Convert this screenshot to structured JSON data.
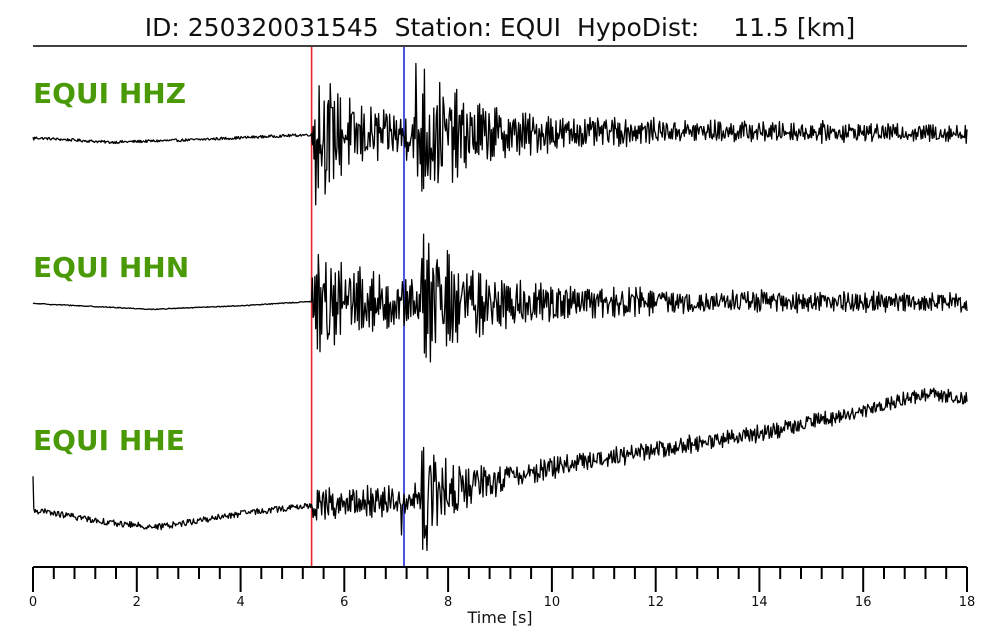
{
  "chart_data": {
    "type": "line",
    "title": {
      "id_label": "ID: 250320031545",
      "station_label": "Station: EQUI",
      "dist_label": "HypoDist:",
      "dist_value": "11.5 [km]"
    },
    "xlabel": "Time [s]",
    "xlim": [
      0,
      18
    ],
    "major_ticks": [
      0,
      2,
      4,
      6,
      8,
      10,
      12,
      14,
      16,
      18
    ],
    "minor_tick_step": 0.4,
    "label_color": "#4a9a08",
    "trace_color": "#000000",
    "picks": [
      {
        "phase": "P",
        "time": 5.37,
        "color": "#e8242a"
      },
      {
        "phase": "S",
        "time": 7.15,
        "color": "#1f2bd6"
      }
    ],
    "series": [
      {
        "name": "EQUI HHZ",
        "pre_noise": 0.03,
        "noise": [
          0.06,
          0.4,
          0.14,
          0.09
        ],
        "bursts": [
          [
            5.42,
            1.05,
            0.32
          ],
          [
            7.4,
            1.05,
            0.9
          ]
        ],
        "trend": [
          [
            0,
            0.05
          ],
          [
            1.5,
            -0.05
          ],
          [
            3,
            0.0
          ],
          [
            5.37,
            0.12
          ],
          [
            8,
            0.1
          ],
          [
            12,
            0.2
          ],
          [
            18,
            0.15
          ]
        ],
        "spikes": [
          [
            0.02,
            0.0
          ],
          [
            7.38,
            1.7
          ],
          [
            7.42,
            -0.8
          ]
        ]
      },
      {
        "name": "EQUI HHN",
        "pre_noise": 0.01,
        "noise": [
          0.05,
          0.38,
          0.15,
          0.11
        ],
        "bursts": [
          [
            5.45,
            0.62,
            0.4
          ],
          [
            7.5,
            1.05,
            0.9
          ]
        ],
        "trend": [
          [
            0,
            0.1
          ],
          [
            2.3,
            -0.03
          ],
          [
            4,
            0.05
          ],
          [
            5.3,
            0.14
          ],
          [
            9,
            0.1
          ],
          [
            14,
            0.15
          ],
          [
            18,
            0.12
          ]
        ],
        "spikes": [
          [
            7.5,
            1.1
          ],
          [
            7.55,
            -1.0
          ]
        ]
      },
      {
        "name": "EQUI HHE",
        "pre_noise": 0.07,
        "noise": [
          0.06,
          0.14,
          0.1,
          0.07
        ],
        "bursts": [
          [
            7.45,
            1.0,
            0.6
          ]
        ],
        "trend": [
          [
            0,
            0.0
          ],
          [
            1.6,
            -0.3
          ],
          [
            2.4,
            -0.38
          ],
          [
            4.2,
            -0.05
          ],
          [
            5.37,
            0.1
          ],
          [
            7.0,
            0.2
          ],
          [
            8.0,
            0.4
          ],
          [
            10,
            0.95
          ],
          [
            12,
            1.35
          ],
          [
            14,
            1.7
          ],
          [
            16,
            2.2
          ],
          [
            17.3,
            2.62
          ],
          [
            18,
            2.45
          ]
        ],
        "spikes": [
          [
            0.0,
            0.75
          ],
          [
            7.1,
            -0.55
          ],
          [
            7.6,
            -0.9
          ]
        ]
      }
    ]
  }
}
